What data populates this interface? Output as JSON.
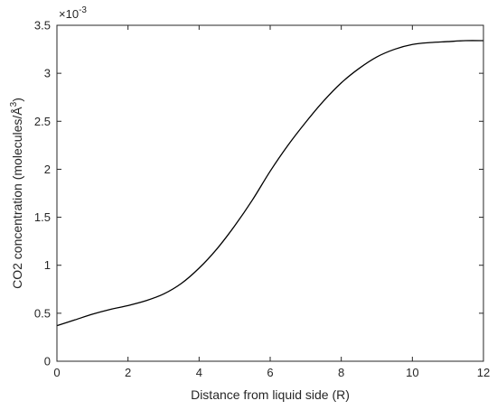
{
  "chart_data": {
    "type": "line",
    "title": "",
    "xlabel": "Distance from liquid side (R)",
    "ylabel": "CO2 concentration (molecules/Å³)",
    "ylabel_parts": {
      "main": "CO2 concentration (molecules/Å",
      "sup": "3",
      "close": ")"
    },
    "y_multiplier": {
      "base": "×10",
      "exponent": "-3"
    },
    "xlim": [
      0,
      12
    ],
    "ylim": [
      0,
      3.5
    ],
    "xticks": [
      0,
      2,
      4,
      6,
      8,
      10,
      12
    ],
    "xtick_labels": [
      "0",
      "2",
      "4",
      "6",
      "8",
      "10",
      "12"
    ],
    "yticks": [
      0,
      0.5,
      1,
      1.5,
      2,
      2.5,
      3,
      3.5
    ],
    "ytick_labels": [
      "0",
      "0.5",
      "1",
      "1.5",
      "2",
      "2.5",
      "3",
      "3.5"
    ],
    "grid": false,
    "line_color": "#000000",
    "series": [
      {
        "x": [
          0,
          0.5,
          1,
          1.5,
          2,
          2.5,
          3,
          3.5,
          4,
          4.5,
          5,
          5.5,
          6,
          6.5,
          7,
          7.5,
          8,
          8.5,
          9,
          9.5,
          10,
          10.5,
          11,
          11.5,
          12
        ],
        "y": [
          0.37,
          0.43,
          0.49,
          0.54,
          0.58,
          0.63,
          0.7,
          0.81,
          0.97,
          1.17,
          1.41,
          1.68,
          1.98,
          2.25,
          2.49,
          2.71,
          2.9,
          3.05,
          3.17,
          3.25,
          3.3,
          3.32,
          3.33,
          3.34,
          3.34
        ]
      }
    ]
  }
}
